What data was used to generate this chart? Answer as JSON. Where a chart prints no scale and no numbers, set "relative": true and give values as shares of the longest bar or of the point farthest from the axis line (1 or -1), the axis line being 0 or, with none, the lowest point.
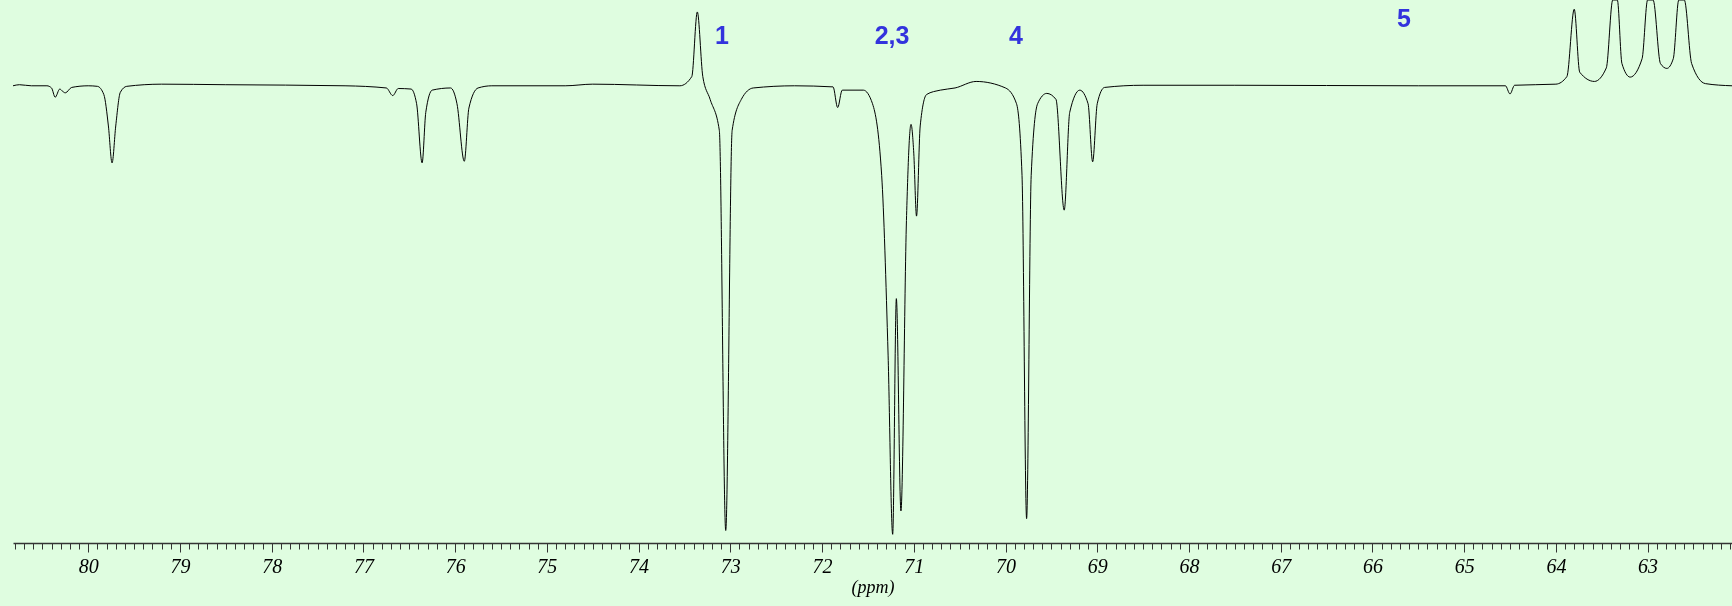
{
  "chart_data": {
    "type": "line",
    "relative": true,
    "xlabel": "(ppm)",
    "xlim": [
      80.82,
      62.08
    ],
    "xticks": [
      {
        "value": 80.8,
        "label": null
      },
      {
        "value": 80.7,
        "label": null
      },
      {
        "value": 80.6,
        "label": null
      },
      {
        "value": 80.5,
        "label": null
      },
      {
        "value": 80.4,
        "label": null
      },
      {
        "value": 80.3,
        "label": null
      },
      {
        "value": 80.2,
        "label": null
      },
      {
        "value": 80.1,
        "label": null
      },
      80,
      {
        "value": 79.9,
        "label": null
      },
      {
        "value": 79.8,
        "label": null
      },
      {
        "value": 79.7,
        "label": null
      },
      {
        "value": 79.6,
        "label": null
      },
      {
        "value": 79.5,
        "label": null
      },
      {
        "value": 79.4,
        "label": null
      },
      {
        "value": 79.3,
        "label": null
      },
      {
        "value": 79.2,
        "label": null
      },
      {
        "value": 79.1,
        "label": null
      },
      79,
      {
        "value": 78.9,
        "label": null
      },
      {
        "value": 78.8,
        "label": null
      },
      {
        "value": 78.7,
        "label": null
      },
      {
        "value": 78.6,
        "label": null
      },
      {
        "value": 78.5,
        "label": null
      },
      {
        "value": 78.4,
        "label": null
      },
      {
        "value": 78.3,
        "label": null
      },
      {
        "value": 78.2,
        "label": null
      },
      {
        "value": 78.1,
        "label": null
      },
      78,
      {
        "value": 77.9,
        "label": null
      },
      {
        "value": 77.8,
        "label": null
      },
      {
        "value": 77.7,
        "label": null
      },
      {
        "value": 77.6,
        "label": null
      },
      {
        "value": 77.5,
        "label": null
      },
      {
        "value": 77.4,
        "label": null
      },
      {
        "value": 77.3,
        "label": null
      },
      {
        "value": 77.2,
        "label": null
      },
      {
        "value": 77.1,
        "label": null
      },
      77,
      {
        "value": 76.9,
        "label": null
      },
      {
        "value": 76.8,
        "label": null
      },
      {
        "value": 76.7,
        "label": null
      },
      {
        "value": 76.6,
        "label": null
      },
      {
        "value": 76.5,
        "label": null
      },
      {
        "value": 76.4,
        "label": null
      },
      {
        "value": 76.3,
        "label": null
      },
      {
        "value": 76.2,
        "label": null
      },
      {
        "value": 76.1,
        "label": null
      },
      76,
      {
        "value": 75.9,
        "label": null
      },
      {
        "value": 75.8,
        "label": null
      },
      {
        "value": 75.7,
        "label": null
      },
      {
        "value": 75.6,
        "label": null
      },
      {
        "value": 75.5,
        "label": null
      },
      {
        "value": 75.4,
        "label": null
      },
      {
        "value": 75.3,
        "label": null
      },
      {
        "value": 75.2,
        "label": null
      },
      {
        "value": 75.1,
        "label": null
      },
      75,
      {
        "value": 74.9,
        "label": null
      },
      {
        "value": 74.8,
        "label": null
      },
      {
        "value": 74.7,
        "label": null
      },
      {
        "value": 74.6,
        "label": null
      },
      {
        "value": 74.5,
        "label": null
      },
      {
        "value": 74.4,
        "label": null
      },
      {
        "value": 74.3,
        "label": null
      },
      {
        "value": 74.2,
        "label": null
      },
      {
        "value": 74.1,
        "label": null
      },
      74,
      {
        "value": 73.9,
        "label": null
      },
      {
        "value": 73.8,
        "label": null
      },
      {
        "value": 73.7,
        "label": null
      },
      {
        "value": 73.6,
        "label": null
      },
      {
        "value": 73.5,
        "label": null
      },
      {
        "value": 73.4,
        "label": null
      },
      {
        "value": 73.3,
        "label": null
      },
      {
        "value": 73.2,
        "label": null
      },
      {
        "value": 73.1,
        "label": null
      },
      73,
      {
        "value": 72.9,
        "label": null
      },
      {
        "value": 72.8,
        "label": null
      },
      {
        "value": 72.7,
        "label": null
      },
      {
        "value": 72.6,
        "label": null
      },
      {
        "value": 72.5,
        "label": null
      },
      {
        "value": 72.4,
        "label": null
      },
      {
        "value": 72.3,
        "label": null
      },
      {
        "value": 72.2,
        "label": null
      },
      {
        "value": 72.1,
        "label": null
      },
      72,
      {
        "value": 71.9,
        "label": null
      },
      {
        "value": 71.8,
        "label": null
      },
      {
        "value": 71.7,
        "label": null
      },
      {
        "value": 71.6,
        "label": null
      },
      {
        "value": 71.5,
        "label": null
      },
      {
        "value": 71.4,
        "label": null
      },
      {
        "value": 71.3,
        "label": null
      },
      {
        "value": 71.2,
        "label": null
      },
      {
        "value": 71.1,
        "label": null
      },
      71,
      {
        "value": 70.9,
        "label": null
      },
      {
        "value": 70.8,
        "label": null
      },
      {
        "value": 70.7,
        "label": null
      },
      {
        "value": 70.6,
        "label": null
      },
      {
        "value": 70.5,
        "label": null
      },
      {
        "value": 70.4,
        "label": null
      },
      {
        "value": 70.3,
        "label": null
      },
      {
        "value": 70.2,
        "label": null
      },
      {
        "value": 70.1,
        "label": null
      },
      70,
      {
        "value": 69.9,
        "label": null
      },
      {
        "value": 69.8,
        "label": null
      },
      {
        "value": 69.7,
        "label": null
      },
      {
        "value": 69.6,
        "label": null
      },
      {
        "value": 69.5,
        "label": null
      },
      {
        "value": 69.4,
        "label": null
      },
      {
        "value": 69.3,
        "label": null
      },
      {
        "value": 69.2,
        "label": null
      },
      {
        "value": 69.1,
        "label": null
      },
      69,
      {
        "value": 68.9,
        "label": null
      },
      {
        "value": 68.8,
        "label": null
      },
      {
        "value": 68.7,
        "label": null
      },
      {
        "value": 68.6,
        "label": null
      },
      {
        "value": 68.5,
        "label": null
      },
      {
        "value": 68.4,
        "label": null
      },
      {
        "value": 68.3,
        "label": null
      },
      {
        "value": 68.2,
        "label": null
      },
      {
        "value": 68.1,
        "label": null
      },
      68,
      {
        "value": 67.9,
        "label": null
      },
      {
        "value": 67.8,
        "label": null
      },
      {
        "value": 67.7,
        "label": null
      },
      {
        "value": 67.6,
        "label": null
      },
      {
        "value": 67.5,
        "label": null
      },
      {
        "value": 67.4,
        "label": null
      },
      {
        "value": 67.3,
        "label": null
      },
      {
        "value": 67.2,
        "label": null
      },
      {
        "value": 67.1,
        "label": null
      },
      67,
      {
        "value": 66.9,
        "label": null
      },
      {
        "value": 66.8,
        "label": null
      },
      {
        "value": 66.7,
        "label": null
      },
      {
        "value": 66.6,
        "label": null
      },
      {
        "value": 66.5,
        "label": null
      },
      {
        "value": 66.4,
        "label": null
      },
      {
        "value": 66.3,
        "label": null
      },
      {
        "value": 66.2,
        "label": null
      },
      {
        "value": 66.1,
        "label": null
      },
      66,
      {
        "value": 65.9,
        "label": null
      },
      {
        "value": 65.8,
        "label": null
      },
      {
        "value": 65.7,
        "label": null
      },
      {
        "value": 65.6,
        "label": null
      },
      {
        "value": 65.5,
        "label": null
      },
      {
        "value": 65.4,
        "label": null
      },
      {
        "value": 65.3,
        "label": null
      },
      {
        "value": 65.2,
        "label": null
      },
      {
        "value": 65.1,
        "label": null
      },
      65,
      {
        "value": 64.9,
        "label": null
      },
      {
        "value": 64.8,
        "label": null
      },
      {
        "value": 64.7,
        "label": null
      },
      {
        "value": 64.6,
        "label": null
      },
      {
        "value": 64.5,
        "label": null
      },
      {
        "value": 64.4,
        "label": null
      },
      {
        "value": 64.3,
        "label": null
      },
      {
        "value": 64.2,
        "label": null
      },
      {
        "value": 64.1,
        "label": null
      },
      64,
      {
        "value": 63.9,
        "label": null
      },
      {
        "value": 63.8,
        "label": null
      },
      {
        "value": 63.7,
        "label": null
      },
      {
        "value": 63.6,
        "label": null
      },
      {
        "value": 63.5,
        "label": null
      },
      {
        "value": 63.4,
        "label": null
      },
      {
        "value": 63.3,
        "label": null
      },
      {
        "value": 63.2,
        "label": null
      },
      {
        "value": 63.1,
        "label": null
      },
      63,
      {
        "value": 62.9,
        "label": null
      },
      {
        "value": 62.8,
        "label": null
      },
      {
        "value": 62.7,
        "label": null
      },
      {
        "value": 62.6,
        "label": null
      },
      {
        "value": 62.5,
        "label": null
      },
      {
        "value": 62.4,
        "label": null
      },
      {
        "value": 62.3,
        "label": null
      },
      {
        "value": 62.2,
        "label": null
      },
      {
        "value": 62.1,
        "label": null
      }
    ],
    "x": [
      80.82,
      80.75,
      80.62,
      80.45,
      80.4,
      80.36,
      80.31,
      80.28,
      80.25,
      80.18,
      80.0,
      79.9,
      79.83,
      79.78,
      79.74,
      79.7,
      79.65,
      79.58,
      79.2,
      78.5,
      77.2,
      76.75,
      76.68,
      76.62,
      76.48,
      76.42,
      76.36,
      76.32,
      76.25,
      76.05,
      75.98,
      75.9,
      75.85,
      75.75,
      75.6,
      74.8,
      74.5,
      73.55,
      73.42,
      73.36,
      73.3,
      73.22,
      73.12,
      73.05,
      72.98,
      72.88,
      72.75,
      72.3,
      71.88,
      71.83,
      71.78,
      71.55,
      71.45,
      71.35,
      71.28,
      71.23,
      71.19,
      71.14,
      71.08,
      71.03,
      71.0,
      70.97,
      70.93,
      70.86,
      70.71,
      70.55,
      70.32,
      70.0,
      69.88,
      69.82,
      69.77,
      69.72,
      69.65,
      69.55,
      69.45,
      69.36,
      69.3,
      69.19,
      69.1,
      69.05,
      69.0,
      68.92,
      68.5,
      67.5,
      65.5,
      64.55,
      64.5,
      64.45,
      64.0,
      63.88,
      63.8,
      63.74,
      63.58,
      63.45,
      63.38,
      63.33,
      63.28,
      63.19,
      63.06,
      63.0,
      62.94,
      62.86,
      62.79,
      62.72,
      62.66,
      62.6,
      62.52,
      62.37,
      62.08
    ],
    "series": [
      {
        "color": "#000000",
        "values": [
          0.842,
          0.844,
          0.842,
          0.842,
          0.838,
          0.821,
          0.836,
          0.832,
          0.829,
          0.839,
          0.842,
          0.841,
          0.826,
          0.768,
          0.7,
          0.768,
          0.83,
          0.841,
          0.845,
          0.844,
          0.842,
          0.838,
          0.824,
          0.837,
          0.836,
          0.809,
          0.7,
          0.793,
          0.834,
          0.838,
          0.809,
          0.703,
          0.801,
          0.838,
          0.842,
          0.842,
          0.845,
          0.842,
          0.859,
          0.978,
          0.859,
          0.817,
          0.76,
          0.023,
          0.76,
          0.817,
          0.838,
          0.842,
          0.84,
          0.802,
          0.834,
          0.834,
          0.809,
          0.677,
          0.346,
          0.016,
          0.45,
          0.059,
          0.594,
          0.771,
          0.718,
          0.602,
          0.768,
          0.826,
          0.834,
          0.838,
          0.85,
          0.838,
          0.809,
          0.677,
          0.045,
          0.677,
          0.809,
          0.828,
          0.817,
          0.613,
          0.793,
          0.834,
          0.809,
          0.702,
          0.809,
          0.839,
          0.843,
          0.843,
          0.842,
          0.842,
          0.827,
          0.843,
          0.845,
          0.859,
          0.983,
          0.867,
          0.85,
          0.875,
          1,
          1,
          0.883,
          0.858,
          0.892,
          1,
          1,
          0.883,
          0.874,
          0.892,
          1,
          1,
          0.883,
          0.846,
          0.842
        ]
      }
    ],
    "annotations": [
      "1",
      "2,3",
      "4",
      "5"
    ]
  }
}
